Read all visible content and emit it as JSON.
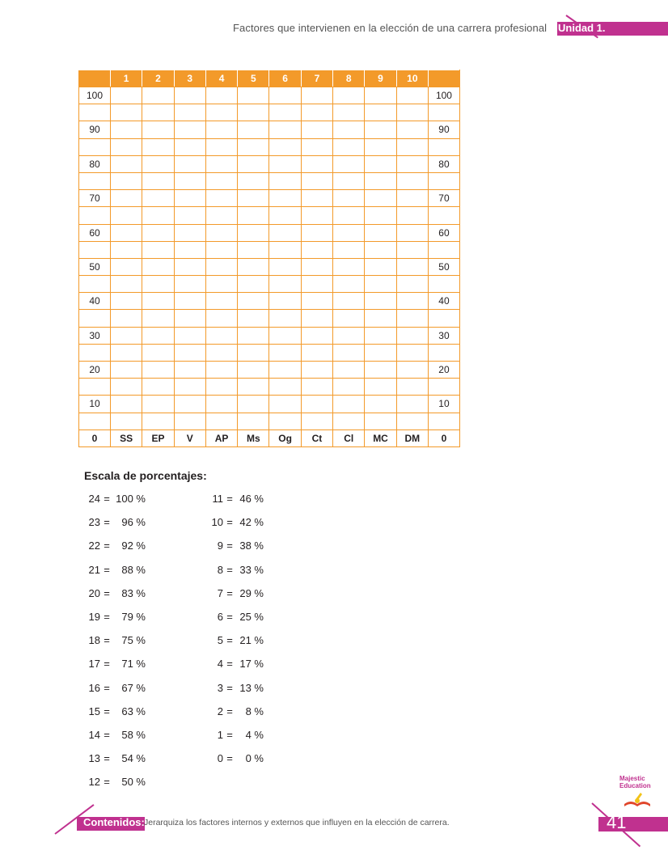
{
  "header": {
    "subtitle": "Factores que intervienen en la elección de una carrera profesional",
    "unit": "Unidad 1."
  },
  "grid": {
    "columns": [
      "",
      "1",
      "2",
      "3",
      "4",
      "5",
      "6",
      "7",
      "8",
      "9",
      "10",
      ""
    ],
    "row_labels": [
      "100",
      "",
      "90",
      "",
      "80",
      "",
      "70",
      "",
      "60",
      "",
      "50",
      "",
      "40",
      "",
      "30",
      "",
      "20",
      "",
      "10",
      "",
      "0"
    ],
    "footer": [
      "0",
      "SS",
      "EP",
      "V",
      "AP",
      "Ms",
      "Og",
      "Ct",
      "Cl",
      "MC",
      "DM",
      "0"
    ]
  },
  "scale": {
    "title": "Escala de porcentajes:",
    "left": [
      {
        "n": "24",
        "p": "100 %"
      },
      {
        "n": "23",
        "p": "96 %"
      },
      {
        "n": "22",
        "p": "92 %"
      },
      {
        "n": "21",
        "p": "88 %"
      },
      {
        "n": "20",
        "p": "83 %"
      },
      {
        "n": "19",
        "p": "79 %"
      },
      {
        "n": "18",
        "p": "75 %"
      },
      {
        "n": "17",
        "p": "71 %"
      },
      {
        "n": "16",
        "p": "67 %"
      },
      {
        "n": "15",
        "p": "63 %"
      },
      {
        "n": "14",
        "p": "58 %"
      },
      {
        "n": "13",
        "p": "54 %"
      },
      {
        "n": "12",
        "p": "50 %"
      }
    ],
    "right": [
      {
        "n": "11",
        "p": "46 %"
      },
      {
        "n": "10",
        "p": "42 %"
      },
      {
        "n": "9",
        "p": "38 %"
      },
      {
        "n": "8",
        "p": "33 %"
      },
      {
        "n": "7",
        "p": "29 %"
      },
      {
        "n": "6",
        "p": "25 %"
      },
      {
        "n": "5",
        "p": "21 %"
      },
      {
        "n": "4",
        "p": "17 %"
      },
      {
        "n": "3",
        "p": "13 %"
      },
      {
        "n": "2",
        "p": "8 %"
      },
      {
        "n": "1",
        "p": "4 %"
      },
      {
        "n": "0",
        "p": "0 %"
      }
    ]
  },
  "footer": {
    "label": "Contenidos:",
    "text": "Jerarquiza los factores internos y externos que influyen en la elección de carrera.",
    "page": "41"
  },
  "logo": {
    "line1": "Majestic",
    "line2": "Education"
  },
  "colors": {
    "accent": "#c0318f",
    "table": "#f39a2a"
  }
}
